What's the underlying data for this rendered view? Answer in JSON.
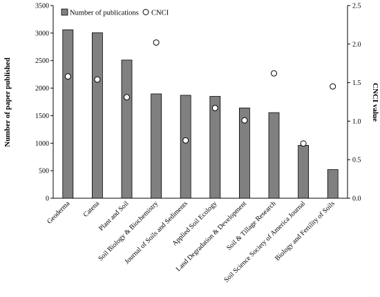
{
  "chart_data": {
    "type": "bar",
    "categories": [
      "Geoderma",
      "Catena",
      "Plant and Soil",
      "Soil Biology & Biochemistry",
      "Journal of Soils and Sediments",
      "Applied Soil Ecology",
      "Land Degradation & Development",
      "Soil & Tillage Research",
      "Soil Science Society of America Journal",
      "Biology and Fertility of Soils"
    ],
    "series": [
      {
        "name": "Number of publications",
        "type": "bar",
        "axis": "left",
        "color": "#808080",
        "values": [
          3060,
          3005,
          2510,
          1895,
          1870,
          1850,
          1640,
          1555,
          960,
          520
        ]
      },
      {
        "name": "CNCI",
        "type": "scatter",
        "axis": "right",
        "color": "#ffffff",
        "values": [
          1.58,
          1.54,
          1.31,
          2.02,
          0.75,
          1.17,
          1.01,
          1.62,
          0.71,
          1.45
        ]
      }
    ],
    "ylabel": "Number of paper published",
    "ylabel_right": "CNCI value",
    "ylim": [
      0,
      3500
    ],
    "ylim_right": [
      0,
      2.5
    ],
    "yticks": [
      "0",
      "500",
      "1000",
      "1500",
      "2000",
      "2500",
      "3000",
      "3500"
    ],
    "yticks_right": [
      "0.0",
      "0.5",
      "1.0",
      "1.5",
      "2.0",
      "2.5"
    ],
    "legend_position": "top-left",
    "grid": false
  }
}
